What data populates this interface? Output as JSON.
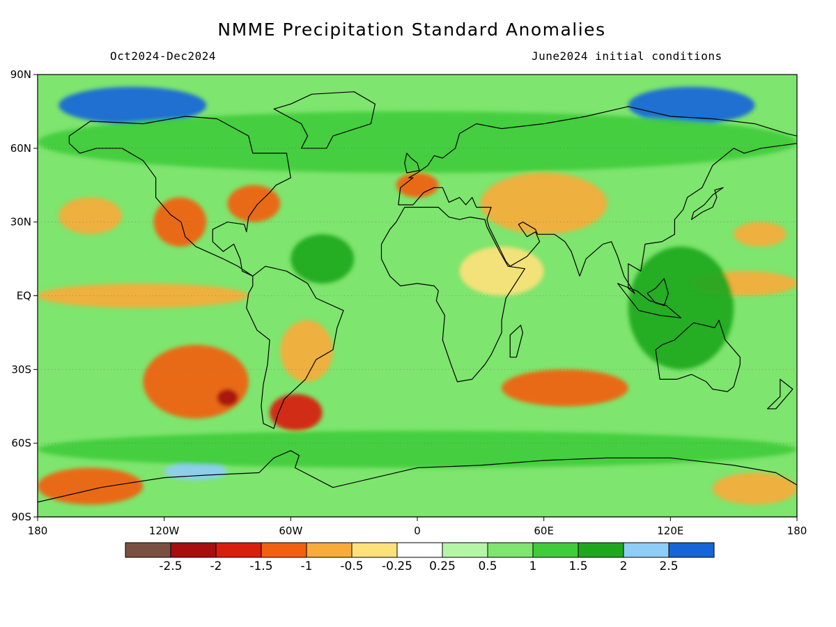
{
  "header": {
    "title": "NMME Precipitation Standard Anomalies",
    "period": "Oct2024-Dec2024",
    "initial_conditions": "June2024 initial conditions"
  },
  "axes": {
    "lat_labels": [
      "90N",
      "60N",
      "30N",
      "EQ",
      "30S",
      "60S",
      "90S"
    ],
    "lat_values": [
      90,
      60,
      30,
      0,
      -30,
      -60,
      -90
    ],
    "lon_labels": [
      "180",
      "120W",
      "60W",
      "0",
      "60E",
      "120E",
      "180"
    ],
    "lon_values": [
      -180,
      -120,
      -60,
      0,
      60,
      120,
      180
    ]
  },
  "colorbar": {
    "labels": [
      "-2.5",
      "-2",
      "-1.5",
      "-1",
      "-0.5",
      "-0.25",
      "0.25",
      "0.5",
      "1",
      "1.5",
      "2",
      "2.5"
    ],
    "colors": [
      "#7a5040",
      "#a50f0f",
      "#d81e0c",
      "#f2600f",
      "#f7ab3a",
      "#fde27a",
      "#ffffff",
      "#b4f5a8",
      "#7ee56e",
      "#3fcc3a",
      "#1fa81f",
      "#8ecdf5",
      "#1565d8"
    ]
  },
  "chart_data": {
    "type": "heatmap",
    "variable": "Precipitation Standard Anomalies",
    "lat_range": [
      -90,
      90
    ],
    "lon_range": [
      -180,
      180
    ],
    "levels": [
      -2.5,
      -2,
      -1.5,
      -1,
      -0.5,
      -0.25,
      0.25,
      0.5,
      1,
      1.5,
      2,
      2.5
    ],
    "anomaly_regions": [
      {
        "lon": [
          -180,
          -80
        ],
        "lat": [
          -5,
          5
        ],
        "value": -1.0
      },
      {
        "lon": [
          -130,
          -80
        ],
        "lat": [
          -50,
          -20
        ],
        "value": -1.5
      },
      {
        "lon": [
          -95,
          -85
        ],
        "lat": [
          -45,
          -38
        ],
        "value": -2.5
      },
      {
        "lon": [
          -70,
          -45
        ],
        "lat": [
          -55,
          -40
        ],
        "value": -2.0
      },
      {
        "lon": [
          -65,
          -40
        ],
        "lat": [
          -35,
          -10
        ],
        "value": -1.0
      },
      {
        "lon": [
          -125,
          -100
        ],
        "lat": [
          20,
          40
        ],
        "value": -1.5
      },
      {
        "lon": [
          -90,
          -65
        ],
        "lat": [
          30,
          45
        ],
        "value": -1.5
      },
      {
        "lon": [
          -170,
          -140
        ],
        "lat": [
          25,
          40
        ],
        "value": -1.0
      },
      {
        "lon": [
          -10,
          10
        ],
        "lat": [
          40,
          50
        ],
        "value": -1.5
      },
      {
        "lon": [
          30,
          90
        ],
        "lat": [
          25,
          50
        ],
        "value": -1.0
      },
      {
        "lon": [
          20,
          60
        ],
        "lat": [
          0,
          20
        ],
        "value": -0.5
      },
      {
        "lon": [
          40,
          100
        ],
        "lat": [
          -45,
          -30
        ],
        "value": -1.5
      },
      {
        "lon": [
          130,
          180
        ],
        "lat": [
          0,
          10
        ],
        "value": -1.0
      },
      {
        "lon": [
          150,
          175
        ],
        "lat": [
          20,
          30
        ],
        "value": -1.0
      },
      {
        "lon": [
          -180,
          -130
        ],
        "lat": [
          -85,
          -70
        ],
        "value": -1.5
      },
      {
        "lon": [
          140,
          180
        ],
        "lat": [
          -85,
          -72
        ],
        "value": -1.0
      },
      {
        "lon": [
          -170,
          -100
        ],
        "lat": [
          70,
          85
        ],
        "value": 2.5
      },
      {
        "lon": [
          100,
          160
        ],
        "lat": [
          70,
          85
        ],
        "value": 2.5
      },
      {
        "lon": [
          -120,
          -90
        ],
        "lat": [
          -75,
          -68
        ],
        "value": 2.0
      },
      {
        "lon": [
          -60,
          -30
        ],
        "lat": [
          5,
          25
        ],
        "value": 1.5
      },
      {
        "lon": [
          100,
          150
        ],
        "lat": [
          -30,
          20
        ],
        "value": 1.5
      },
      {
        "lon": [
          -180,
          180
        ],
        "lat": [
          -70,
          -55
        ],
        "value": 1.0
      },
      {
        "lon": [
          -180,
          180
        ],
        "lat": [
          50,
          75
        ],
        "value": 1.0
      }
    ]
  }
}
